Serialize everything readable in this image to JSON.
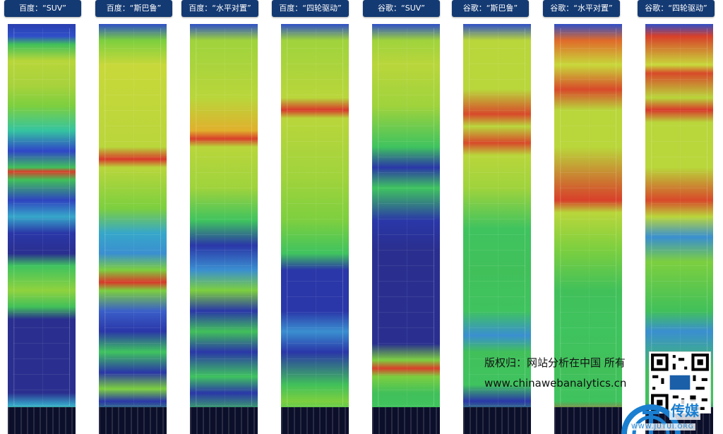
{
  "panels": [
    {
      "label": "百度：“SUV”",
      "stops": [
        [
          0,
          "#2a3fb0"
        ],
        [
          3,
          "#2f4fc8"
        ],
        [
          5,
          "#41c05a"
        ],
        [
          9,
          "#b8d63a"
        ],
        [
          15,
          "#a8d23c"
        ],
        [
          20,
          "#7ccf3f"
        ],
        [
          26,
          "#35c4a0"
        ],
        [
          31,
          "#2f46c8"
        ],
        [
          35,
          "#41c05a"
        ],
        [
          36,
          "#d8402a"
        ],
        [
          38,
          "#41c05a"
        ],
        [
          43,
          "#2e45c0"
        ],
        [
          47,
          "#36a7c9"
        ],
        [
          51,
          "#2a37a8"
        ],
        [
          56,
          "#2a2f8f"
        ],
        [
          59,
          "#3fc35f"
        ],
        [
          65,
          "#8fd23e"
        ],
        [
          69,
          "#41c05a"
        ],
        [
          72,
          "#2a2f8f"
        ],
        [
          90,
          "#2a2f8f"
        ],
        [
          93,
          "#36a7c9"
        ],
        [
          95,
          "#52c84a"
        ],
        [
          98,
          "#2a2f8f"
        ]
      ]
    },
    {
      "label": "百度：“斯巴鲁”",
      "stops": [
        [
          0,
          "#2f4fc8"
        ],
        [
          4,
          "#7ccf3f"
        ],
        [
          10,
          "#c8d83a"
        ],
        [
          30,
          "#b9d63b"
        ],
        [
          33,
          "#d83a2a"
        ],
        [
          35,
          "#b9d63b"
        ],
        [
          45,
          "#7ccf3f"
        ],
        [
          51,
          "#36a7c9"
        ],
        [
          56,
          "#3a8fd0"
        ],
        [
          60,
          "#7ccf3f"
        ],
        [
          63,
          "#d83a2a"
        ],
        [
          65,
          "#7ccf3f"
        ],
        [
          70,
          "#3a5fc8"
        ],
        [
          75,
          "#2a37a8"
        ],
        [
          80,
          "#3fc35f"
        ],
        [
          85,
          "#2a37a8"
        ],
        [
          89,
          "#7ccf3f"
        ],
        [
          92,
          "#2a37a8"
        ],
        [
          96,
          "#41c05a"
        ],
        [
          98,
          "#2a2f8f"
        ]
      ]
    },
    {
      "label": "百度：“水平对置”",
      "stops": [
        [
          0,
          "#2f4fc8"
        ],
        [
          4,
          "#9fd33c"
        ],
        [
          18,
          "#b9d63b"
        ],
        [
          26,
          "#e0b02c"
        ],
        [
          28,
          "#d8402a"
        ],
        [
          30,
          "#b9d63b"
        ],
        [
          40,
          "#9fd33c"
        ],
        [
          48,
          "#3fc35f"
        ],
        [
          54,
          "#2a37a8"
        ],
        [
          60,
          "#3a8fd0"
        ],
        [
          65,
          "#7ccf3f"
        ],
        [
          70,
          "#2a37a8"
        ],
        [
          75,
          "#41c05a"
        ],
        [
          80,
          "#2a37a8"
        ],
        [
          86,
          "#3fc35f"
        ],
        [
          90,
          "#2a37a8"
        ],
        [
          95,
          "#41c05a"
        ],
        [
          98,
          "#2a2f8f"
        ]
      ]
    },
    {
      "label": "百度：“四轮驱动”",
      "stops": [
        [
          0,
          "#2f4fc8"
        ],
        [
          4,
          "#9fd33c"
        ],
        [
          18,
          "#b9d63b"
        ],
        [
          21,
          "#d83a2a"
        ],
        [
          23,
          "#b9d63b"
        ],
        [
          38,
          "#9fd33c"
        ],
        [
          48,
          "#7ccf3f"
        ],
        [
          56,
          "#3fc35f"
        ],
        [
          60,
          "#2a37a8"
        ],
        [
          70,
          "#2a37a8"
        ],
        [
          75,
          "#3a8fd0"
        ],
        [
          80,
          "#2a37a8"
        ],
        [
          88,
          "#41c05a"
        ],
        [
          92,
          "#7ccf3f"
        ],
        [
          96,
          "#3fc35f"
        ],
        [
          98,
          "#2a2f8f"
        ]
      ]
    },
    {
      "label": "谷歌：“SUV”",
      "stops": [
        [
          0,
          "#2f4fc8"
        ],
        [
          4,
          "#9fd33c"
        ],
        [
          10,
          "#b9d63b"
        ],
        [
          20,
          "#9fd33c"
        ],
        [
          30,
          "#3fc35f"
        ],
        [
          35,
          "#2a37a8"
        ],
        [
          40,
          "#3fc35f"
        ],
        [
          48,
          "#2a37a8"
        ],
        [
          55,
          "#2a2f8f"
        ],
        [
          78,
          "#2a2f8f"
        ],
        [
          82,
          "#7ccf3f"
        ],
        [
          84,
          "#d8402a"
        ],
        [
          86,
          "#7ccf3f"
        ],
        [
          90,
          "#41c05a"
        ],
        [
          95,
          "#3fc35f"
        ],
        [
          98,
          "#2a2f8f"
        ]
      ]
    },
    {
      "label": "谷歌：“斯巴鲁”",
      "stops": [
        [
          0,
          "#2f4fc8"
        ],
        [
          4,
          "#b9d63b"
        ],
        [
          16,
          "#b9d63b"
        ],
        [
          22,
          "#d84a2a"
        ],
        [
          25,
          "#b9d63b"
        ],
        [
          29,
          "#d84a2a"
        ],
        [
          32,
          "#b9d63b"
        ],
        [
          40,
          "#9fd33c"
        ],
        [
          50,
          "#3fc35f"
        ],
        [
          60,
          "#41c05a"
        ],
        [
          70,
          "#3fc35f"
        ],
        [
          76,
          "#3a8fd0"
        ],
        [
          80,
          "#41c05a"
        ],
        [
          88,
          "#3fc35f"
        ],
        [
          92,
          "#2a37a8"
        ],
        [
          96,
          "#41c05a"
        ],
        [
          98,
          "#2a2f8f"
        ]
      ]
    },
    {
      "label": "谷歌：“水平对置”",
      "stops": [
        [
          0,
          "#2f4fc8"
        ],
        [
          4,
          "#e06a2a"
        ],
        [
          10,
          "#c8d83a"
        ],
        [
          16,
          "#d84a2a"
        ],
        [
          21,
          "#b9d63b"
        ],
        [
          30,
          "#b9d63b"
        ],
        [
          43,
          "#d8402a"
        ],
        [
          46,
          "#b9d63b"
        ],
        [
          55,
          "#7ccf3f"
        ],
        [
          65,
          "#41c05a"
        ],
        [
          75,
          "#3fc35f"
        ],
        [
          85,
          "#41c05a"
        ],
        [
          92,
          "#3fc35f"
        ],
        [
          96,
          "#d8402a"
        ],
        [
          98,
          "#2a2f8f"
        ]
      ]
    },
    {
      "label": "谷歌：“四轮驱动”",
      "stops": [
        [
          0,
          "#2f4fc8"
        ],
        [
          3,
          "#d8402a"
        ],
        [
          10,
          "#c8d83a"
        ],
        [
          12,
          "#d84a2a"
        ],
        [
          18,
          "#b9d63b"
        ],
        [
          21,
          "#d83a2a"
        ],
        [
          24,
          "#b9d63b"
        ],
        [
          35,
          "#b9d63b"
        ],
        [
          43,
          "#d84a2a"
        ],
        [
          47,
          "#b9d63b"
        ],
        [
          52,
          "#3a8fd0"
        ],
        [
          58,
          "#7ccf3f"
        ],
        [
          70,
          "#41c05a"
        ],
        [
          75,
          "#3a8fd0"
        ],
        [
          85,
          "#41c05a"
        ],
        [
          92,
          "#3fc35f"
        ],
        [
          98,
          "#2a2f8f"
        ]
      ]
    }
  ],
  "watermark": {
    "text": "版权归：网站分析在中国 所有",
    "url": "www.chinawebanalytics.cn"
  },
  "logo": {
    "text": "传媒",
    "sub": "WWW.JUTUI.ORG"
  }
}
